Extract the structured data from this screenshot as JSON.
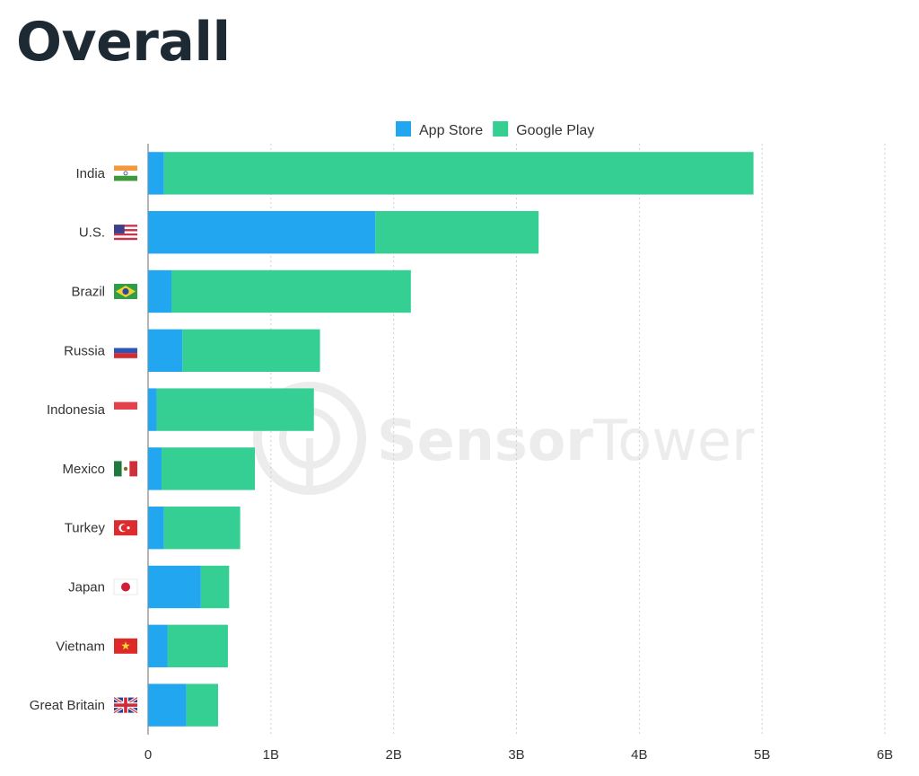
{
  "header": {
    "title": "Overall"
  },
  "watermark": {
    "text_bold": "Sensor",
    "text_light": "Tower"
  },
  "chart_data": {
    "type": "bar",
    "orientation": "horizontal",
    "stacked": true,
    "categories": [
      "India",
      "U.S.",
      "Brazil",
      "Russia",
      "Indonesia",
      "Mexico",
      "Turkey",
      "Japan",
      "Vietnam",
      "Great Britain"
    ],
    "category_flags": [
      "india-flag-icon",
      "us-flag-icon",
      "brazil-flag-icon",
      "russia-flag-icon",
      "indonesia-flag-icon",
      "mexico-flag-icon",
      "turkey-flag-icon",
      "japan-flag-icon",
      "vietnam-flag-icon",
      "great-britain-flag-icon"
    ],
    "series": [
      {
        "name": "App Store",
        "color": "#23a6f0",
        "values": [
          0.13,
          1.85,
          0.19,
          0.28,
          0.07,
          0.11,
          0.13,
          0.43,
          0.16,
          0.31
        ]
      },
      {
        "name": "Google Play",
        "color": "#36cf93",
        "values": [
          4.8,
          1.33,
          1.95,
          1.12,
          1.28,
          0.76,
          0.62,
          0.23,
          0.49,
          0.26
        ]
      }
    ],
    "xlim": [
      0,
      6
    ],
    "xticks": [
      0,
      1,
      2,
      3,
      4,
      5,
      6
    ],
    "xtick_labels": [
      "0",
      "1B",
      "2B",
      "3B",
      "4B",
      "5B",
      "6B"
    ],
    "xlabel": "",
    "ylabel": "",
    "grid": "vertical dotted",
    "legend_position": "top-center"
  }
}
